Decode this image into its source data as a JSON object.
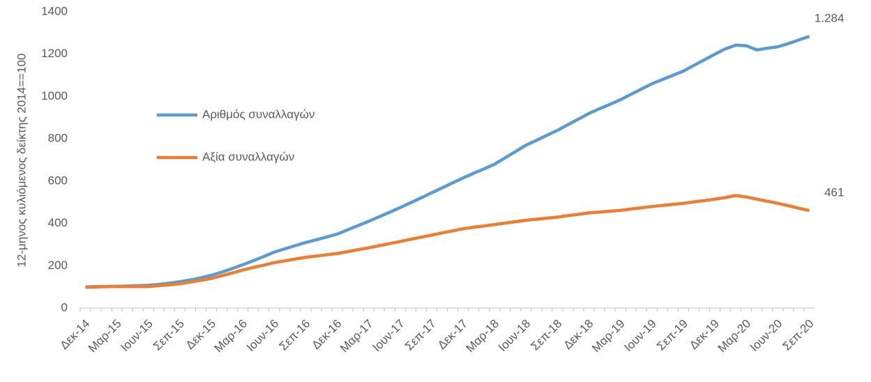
{
  "chart_data": {
    "type": "line",
    "y_label": "12-μηνος κυλιόμενος δείκτης 2014==100",
    "categories": [
      "Δεκ-14",
      null,
      null,
      "Μαρ-15",
      null,
      null,
      "Ιουν-15",
      null,
      null,
      "Σεπ-15",
      null,
      null,
      "Δεκ-15",
      null,
      null,
      "Μαρ-16",
      null,
      null,
      "Ιουν-16",
      null,
      null,
      "Σεπ-16",
      null,
      null,
      "Δεκ-16",
      null,
      null,
      "Μαρ-17",
      null,
      null,
      "Ιουν-17",
      null,
      null,
      "Σεπ-17",
      null,
      null,
      "Δεκ-17",
      null,
      null,
      "Μαρ-18",
      null,
      null,
      "Ιουν-18",
      null,
      null,
      "Σεπ-18",
      null,
      null,
      "Δεκ-18",
      null,
      null,
      "Μαρ-19",
      null,
      null,
      "Ιουν-19",
      null,
      null,
      "Σεπ-19",
      null,
      null,
      "Δεκ-19",
      null,
      null,
      "Μαρ-20",
      null,
      null,
      "Ιουν-20",
      null,
      null,
      "Σεπ-20"
    ],
    "series": [
      {
        "name": "Αριθμός συναλλαγών",
        "color": "#5b9bd5",
        "values": [
          100,
          101,
          102,
          103,
          104,
          106,
          108,
          112,
          118,
          125,
          133,
          143,
          155,
          170,
          187,
          205,
          224,
          244,
          265,
          280,
          295,
          310,
          323,
          336,
          350,
          370,
          390,
          410,
          432,
          453,
          475,
          498,
          521,
          545,
          568,
          592,
          615,
          637,
          658,
          680,
          710,
          740,
          770,
          793,
          817,
          840,
          867,
          893,
          920,
          942,
          963,
          985,
          1010,
          1035,
          1060,
          1080,
          1100,
          1120,
          1147,
          1173,
          1200,
          1225,
          1243,
          1240,
          1220,
          1228,
          1235,
          1250,
          1267,
          1284
        ],
        "value_labels": [
          null,
          null,
          null,
          null,
          null,
          null,
          null,
          null,
          null,
          null,
          null,
          null,
          null,
          null,
          null,
          null,
          null,
          null,
          null,
          null,
          null,
          null,
          null,
          null,
          null,
          null,
          null,
          null,
          null,
          null,
          null,
          null,
          null,
          null,
          null,
          null,
          null,
          null,
          null,
          null,
          null,
          null,
          null,
          null,
          null,
          null,
          null,
          null,
          null,
          null,
          null,
          null,
          null,
          null,
          null,
          null,
          null,
          null,
          null,
          null,
          null,
          null,
          null,
          null,
          null,
          null,
          null,
          null,
          null,
          "1.284"
        ]
      },
      {
        "name": "Αξία συναλλαγών",
        "color": "#ed7d31",
        "values": [
          98,
          100,
          101,
          102,
          102,
          102,
          102,
          106,
          110,
          115,
          123,
          131,
          140,
          153,
          166,
          180,
          192,
          203,
          215,
          223,
          232,
          240,
          246,
          252,
          258,
          267,
          276,
          285,
          295,
          305,
          315,
          325,
          335,
          345,
          355,
          365,
          375,
          382,
          388,
          395,
          402,
          408,
          415,
          420,
          425,
          430,
          437,
          443,
          450,
          454,
          458,
          462,
          468,
          474,
          480,
          485,
          490,
          495,
          502,
          508,
          515,
          522,
          532,
          525,
          515,
          505,
          495,
          484,
          472,
          461
        ]
      }
    ],
    "ylim": [
      0,
      1400
    ],
    "yticks": [
      0,
      200,
      400,
      600,
      800,
      1000,
      1200,
      1400
    ],
    "grid": false
  }
}
